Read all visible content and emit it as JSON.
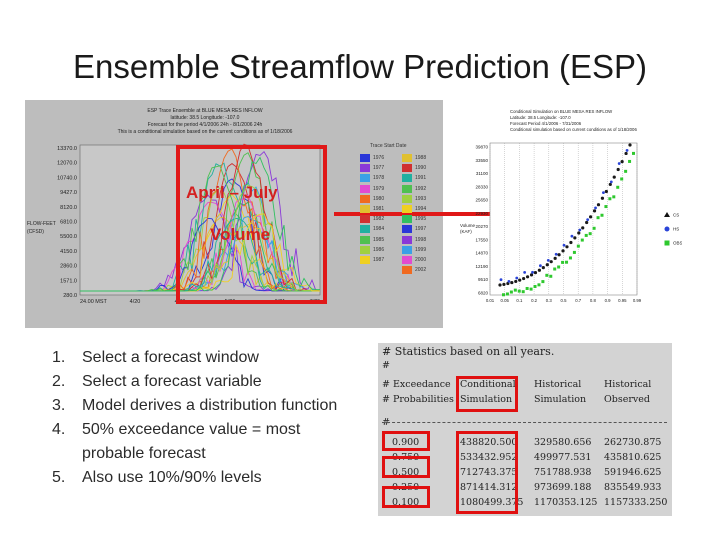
{
  "title": "Ensemble Streamflow Prediction (ESP)",
  "hydrograph": {
    "header_lines": [
      "ESP Trace Ensemble at BLUE MESA RES INFLOW",
      "latitude: 38.5    Longitude: -107.0",
      "Forecast for the period 4/1/2006 24h - 8/1/2006 24h",
      "This is a conditional simulation based on the current conditions as of 1/18/2006"
    ],
    "y_ticks": [
      "13370.0",
      "12070.0",
      "10740.0",
      "9427.0",
      "8120.0",
      "6810.0",
      "5500.0",
      "4150.0",
      "2860.0",
      "1571.0",
      "280.0"
    ],
    "y_label_lines": [
      "FLOW-FEET",
      "(CFSD)"
    ],
    "x_ticks": [
      "24.00 MST",
      "4/20",
      "4/30",
      "5/26",
      "6/21",
      "7/25"
    ],
    "box_label_top": "April – July",
    "box_label_bottom": "Volume"
  },
  "legend": {
    "title": "Trace Start Date",
    "col1": [
      "1976",
      "1977",
      "1978",
      "1979",
      "1980",
      "1981",
      "1982",
      "1984",
      "1985",
      "1986",
      "1987"
    ],
    "col2": [
      "1988",
      "1990",
      "1991",
      "1992",
      "1993",
      "1994",
      "1995",
      "1997",
      "1998",
      "1999",
      "2000",
      "2002"
    ],
    "colors": [
      "#2a36d8",
      "#8a38d8",
      "#3aa0e6",
      "#e24bd0",
      "#f06a20",
      "#e0c030",
      "#d03030",
      "#20b0a0",
      "#50c050",
      "#a0d040",
      "#f0d020",
      "#30c060"
    ]
  },
  "prob_plot": {
    "header_lines": [
      "Conditional Simulation on BLUE MESA RES INFLOW",
      "Latitude: 38.5    Longitude: -107.0",
      "Forecast Period 4/1/2006 - 7/31/2006",
      "Conditional simulation based on current conditions as of 1/18/2006"
    ],
    "y_ticks": [
      "39870",
      "33550",
      "31100",
      "28330",
      "25650",
      "22930",
      "20270",
      "17550",
      "14870",
      "12190",
      "9510",
      "6820"
    ],
    "y_label_lines": [
      "Volume",
      "(KAF)"
    ],
    "x_ticks": [
      "0.01",
      "0.05",
      "0.1",
      "0.2",
      "0.3",
      "0.5",
      "0.7",
      "0.8",
      "0.9",
      "0.95",
      "0.99"
    ],
    "legend_labels": [
      "CS",
      "HS",
      "OBS"
    ]
  },
  "steps": [
    {
      "num": "1.",
      "text": "Select a forecast window"
    },
    {
      "num": "2.",
      "text": "Select a forecast variable"
    },
    {
      "num": "3.",
      "text": "Model derives a distribution function"
    },
    {
      "num": "4.",
      "text": "50% exceedance value = most probable forecast"
    },
    {
      "num": "5.",
      "text": "Also use 10%/90% levels"
    }
  ],
  "stats": {
    "header1": "# Statistics based on all years.",
    "header2": "#",
    "col_head_row1": [
      "# Exceedance",
      "Conditional",
      "Historical",
      "Historical"
    ],
    "col_head_row2": [
      "# Probabilities",
      "Simulation",
      "Simulation",
      "Observed"
    ],
    "header5": "#",
    "rows": [
      [
        "0.900",
        "438820.500",
        "329580.656",
        "262730.875"
      ],
      [
        "0.750",
        "533432.952",
        "499977.531",
        "435810.625"
      ],
      [
        "0.500",
        "712743.375",
        "751788.938",
        "591946.625"
      ],
      [
        "0.250",
        "871414.312",
        "973699.188",
        "835549.933"
      ],
      [
        "0.100",
        "1080499.375",
        "1170353.125",
        "1157333.250"
      ]
    ]
  }
}
